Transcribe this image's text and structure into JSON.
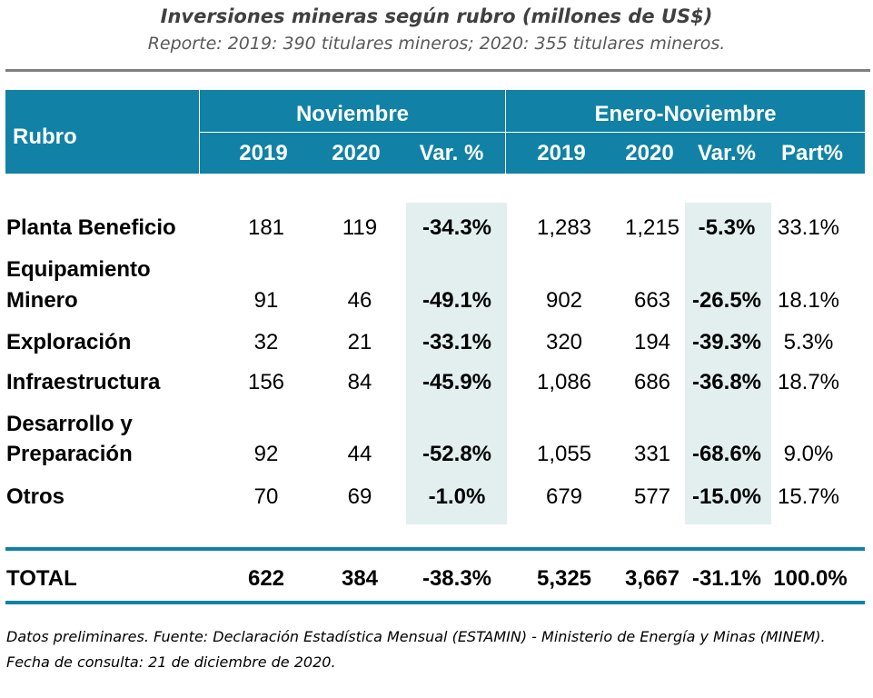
{
  "title": "Inversiones mineras según rubro (millones de US$)",
  "subtitle": "Reporte: 2019: 390 titulares mineros; 2020: 355 titulares mineros.",
  "header": {
    "rubro": "Rubro",
    "group1": "Noviembre",
    "group2": "Enero-Noviembre",
    "cols": [
      "2019",
      "2020",
      "Var. %",
      "2019",
      "2020",
      "Var.%",
      "Part%"
    ]
  },
  "rows": [
    {
      "label": [
        "Planta Beneficio"
      ],
      "values": [
        "181",
        "119",
        "-34.3%",
        "1,283",
        "1,215",
        "-5.3%",
        "33.1%"
      ]
    },
    {
      "label": [
        "Equipamiento",
        "Minero"
      ],
      "values": [
        "91",
        "46",
        "-49.1%",
        "902",
        "663",
        "-26.5%",
        "18.1%"
      ]
    },
    {
      "label": [
        "Exploración"
      ],
      "values": [
        "32",
        "21",
        "-33.1%",
        "320",
        "194",
        "-39.3%",
        "5.3%"
      ]
    },
    {
      "label": [
        "Infraestructura"
      ],
      "values": [
        "156",
        "84",
        "-45.9%",
        "1,086",
        "686",
        "-36.8%",
        "18.7%"
      ]
    },
    {
      "label": [
        "Desarrollo y",
        "Preparación"
      ],
      "values": [
        "92",
        "44",
        "-52.8%",
        "1,055",
        "331",
        "-68.6%",
        "9.0%"
      ]
    },
    {
      "label": [
        "Otros"
      ],
      "values": [
        "70",
        "69",
        "-1.0%",
        "679",
        "577",
        "-15.0%",
        "15.7%"
      ]
    }
  ],
  "total": {
    "label": "TOTAL",
    "values": [
      "622",
      "384",
      "-38.3%",
      "5,325",
      "3,667",
      "-31.1%",
      "100.0%"
    ]
  },
  "footnote": [
    "Datos preliminares. Fuente: Declaración Estadística Mensual (ESTAMIN) - Ministerio de Energía y Minas (MINEM).",
    "Fecha de consulta: 21 de diciembre de 2020."
  ],
  "colors": {
    "header_bg": "#1182a5",
    "shade": "#e2efee",
    "rule": "#7f7f7f"
  }
}
